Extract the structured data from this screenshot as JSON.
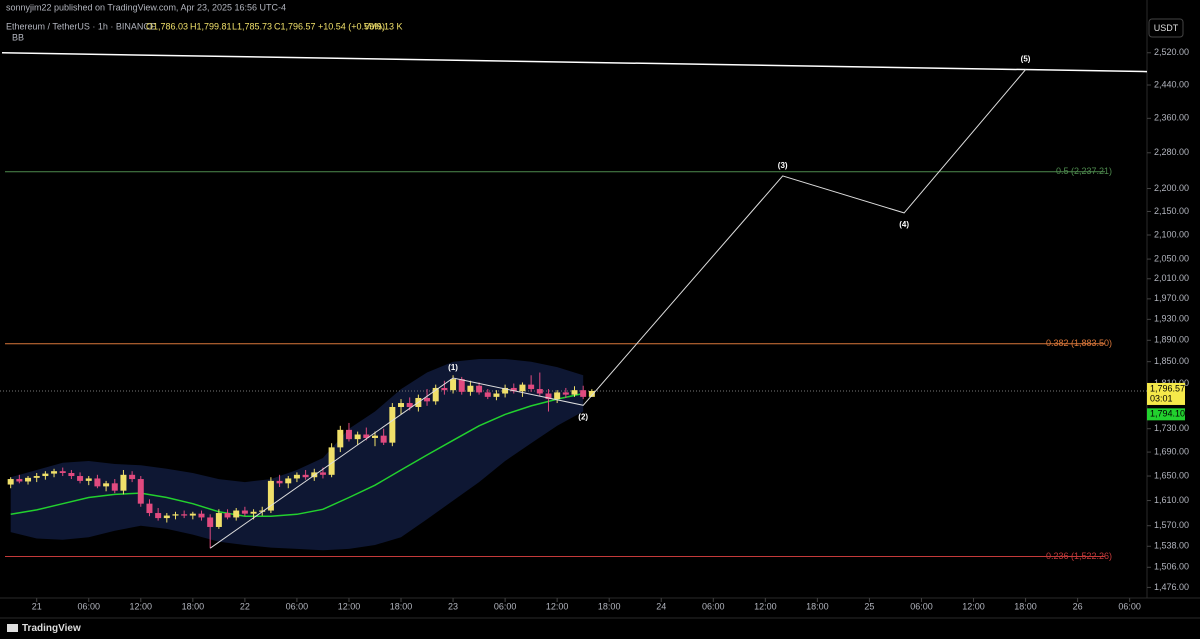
{
  "header": {
    "publisher": "sonnyjim22 published on TradingView.com, Apr 23, 2025 16:56 UTC-4",
    "symbol": "Ethereum / TetherUS · 1h · BINANCE",
    "open": "O1,786.03",
    "high": "H1,799.81",
    "low": "L1,785.73",
    "close": "C1,796.57",
    "change": "+10.54 (+0.59%)",
    "volume": "Vol9.13 K",
    "indicator": "BB",
    "currency": "USDT"
  },
  "footer": {
    "brand": "TradingView"
  },
  "chart_data": {
    "type": "candlestick",
    "log_scale": true,
    "up_color": "#f0e06a",
    "down_color": "#e04a7f",
    "ylim": [
      1443,
      2604
    ],
    "xlim": [
      "2025-04-20T20:00",
      "2025-04-26T08:00"
    ],
    "yticks": [
      {
        "value": 2520,
        "label": "2,520.00"
      },
      {
        "value": 2440,
        "label": "2,440.00"
      },
      {
        "value": 2360,
        "label": "2,360.00"
      },
      {
        "value": 2280,
        "label": "2,280.00"
      },
      {
        "value": 2200,
        "label": "2,200.00"
      },
      {
        "value": 2150,
        "label": "2,150.00"
      },
      {
        "value": 2100,
        "label": "2,100.00"
      },
      {
        "value": 2050,
        "label": "2,050.00"
      },
      {
        "value": 2010,
        "label": "2,010.00"
      },
      {
        "value": 1970,
        "label": "1,970.00"
      },
      {
        "value": 1930,
        "label": "1,930.00"
      },
      {
        "value": 1890,
        "label": "1,890.00"
      },
      {
        "value": 1850,
        "label": "1,850.00"
      },
      {
        "value": 1810,
        "label": "1,810.00"
      },
      {
        "value": 1730,
        "label": "1,730.00"
      },
      {
        "value": 1690,
        "label": "1,690.00"
      },
      {
        "value": 1650,
        "label": "1,650.00"
      },
      {
        "value": 1610,
        "label": "1,610.00"
      },
      {
        "value": 1570,
        "label": "1,570.00"
      },
      {
        "value": 1538,
        "label": "1,538.00"
      },
      {
        "value": 1506,
        "label": "1,506.00"
      },
      {
        "value": 1476,
        "label": "1,476.00"
      }
    ],
    "xticks": [
      {
        "value": "2025-04-21T00:00",
        "label": "21"
      },
      {
        "value": "2025-04-21T06:00",
        "label": "06:00"
      },
      {
        "value": "2025-04-21T12:00",
        "label": "12:00"
      },
      {
        "value": "2025-04-21T18:00",
        "label": "18:00"
      },
      {
        "value": "2025-04-22T00:00",
        "label": "22"
      },
      {
        "value": "2025-04-22T06:00",
        "label": "06:00"
      },
      {
        "value": "2025-04-22T12:00",
        "label": "12:00"
      },
      {
        "value": "2025-04-22T18:00",
        "label": "18:00"
      },
      {
        "value": "2025-04-23T00:00",
        "label": "23"
      },
      {
        "value": "2025-04-23T06:00",
        "label": "06:00"
      },
      {
        "value": "2025-04-23T12:00",
        "label": "12:00"
      },
      {
        "value": "2025-04-23T18:00",
        "label": "18:00"
      },
      {
        "value": "2025-04-24T00:00",
        "label": "24"
      },
      {
        "value": "2025-04-24T06:00",
        "label": "06:00"
      },
      {
        "value": "2025-04-24T12:00",
        "label": "12:00"
      },
      {
        "value": "2025-04-24T18:00",
        "label": "18:00"
      },
      {
        "value": "2025-04-25T00:00",
        "label": "25"
      },
      {
        "value": "2025-04-25T06:00",
        "label": "06:00"
      },
      {
        "value": "2025-04-25T12:00",
        "label": "12:00"
      },
      {
        "value": "2025-04-25T18:00",
        "label": "18:00"
      },
      {
        "value": "2025-04-26T00:00",
        "label": "26"
      },
      {
        "value": "2025-04-26T06:00",
        "label": "06:00"
      }
    ],
    "x": [
      "2025-04-20T21:00",
      "2025-04-20T22:00",
      "2025-04-20T23:00",
      "2025-04-21T00:00",
      "2025-04-21T01:00",
      "2025-04-21T02:00",
      "2025-04-21T03:00",
      "2025-04-21T04:00",
      "2025-04-21T05:00",
      "2025-04-21T06:00",
      "2025-04-21T07:00",
      "2025-04-21T08:00",
      "2025-04-21T09:00",
      "2025-04-21T10:00",
      "2025-04-21T11:00",
      "2025-04-21T12:00",
      "2025-04-21T13:00",
      "2025-04-21T14:00",
      "2025-04-21T15:00",
      "2025-04-21T16:00",
      "2025-04-21T17:00",
      "2025-04-21T18:00",
      "2025-04-21T19:00",
      "2025-04-21T20:00",
      "2025-04-21T21:00",
      "2025-04-21T22:00",
      "2025-04-21T23:00",
      "2025-04-22T00:00",
      "2025-04-22T01:00",
      "2025-04-22T02:00",
      "2025-04-22T03:00",
      "2025-04-22T04:00",
      "2025-04-22T05:00",
      "2025-04-22T06:00",
      "2025-04-22T07:00",
      "2025-04-22T08:00",
      "2025-04-22T09:00",
      "2025-04-22T10:00",
      "2025-04-22T11:00",
      "2025-04-22T12:00",
      "2025-04-22T13:00",
      "2025-04-22T14:00",
      "2025-04-22T15:00",
      "2025-04-22T16:00",
      "2025-04-22T17:00",
      "2025-04-22T18:00",
      "2025-04-22T19:00",
      "2025-04-22T20:00",
      "2025-04-22T21:00",
      "2025-04-22T22:00",
      "2025-04-22T23:00",
      "2025-04-23T00:00",
      "2025-04-23T01:00",
      "2025-04-23T02:00",
      "2025-04-23T03:00",
      "2025-04-23T04:00",
      "2025-04-23T05:00",
      "2025-04-23T06:00",
      "2025-04-23T07:00",
      "2025-04-23T08:00",
      "2025-04-23T09:00",
      "2025-04-23T10:00",
      "2025-04-23T11:00",
      "2025-04-23T12:00",
      "2025-04-23T13:00",
      "2025-04-23T14:00",
      "2025-04-23T15:00",
      "2025-04-23T16:00"
    ],
    "open": [
      1636,
      1645,
      1641,
      1647,
      1650,
      1654,
      1658,
      1655,
      1650,
      1642,
      1646,
      1633,
      1638,
      1626,
      1652,
      1645,
      1605,
      1590,
      1582,
      1586,
      1588,
      1586,
      1589,
      1583,
      1568,
      1590,
      1583,
      1594,
      1589,
      1592,
      1594,
      1642,
      1638,
      1646,
      1652,
      1648,
      1656,
      1652,
      1698,
      1728,
      1712,
      1720,
      1714,
      1718,
      1706,
      1768,
      1775,
      1768,
      1784,
      1778,
      1802,
      1798,
      1818,
      1795,
      1806,
      1794,
      1786,
      1792,
      1802,
      1796,
      1808,
      1800,
      1792,
      1782,
      1794,
      1790,
      1798,
      1786.03
    ],
    "high": [
      1648,
      1652,
      1650,
      1655,
      1658,
      1662,
      1664,
      1660,
      1656,
      1650,
      1652,
      1642,
      1645,
      1660,
      1658,
      1650,
      1612,
      1598,
      1590,
      1592,
      1594,
      1592,
      1594,
      1588,
      1596,
      1596,
      1598,
      1600,
      1596,
      1600,
      1648,
      1652,
      1650,
      1656,
      1660,
      1662,
      1664,
      1705,
      1735,
      1740,
      1725,
      1732,
      1725,
      1730,
      1775,
      1782,
      1785,
      1790,
      1800,
      1808,
      1815,
      1825,
      1822,
      1815,
      1812,
      1800,
      1798,
      1808,
      1810,
      1812,
      1825,
      1830,
      1800,
      1798,
      1802,
      1805,
      1806,
      1799.81
    ],
    "low": [
      1630,
      1638,
      1636,
      1640,
      1644,
      1648,
      1650,
      1645,
      1638,
      1635,
      1630,
      1625,
      1622,
      1620,
      1640,
      1600,
      1585,
      1578,
      1575,
      1580,
      1582,
      1580,
      1578,
      1535,
      1565,
      1580,
      1578,
      1585,
      1580,
      1586,
      1590,
      1632,
      1630,
      1640,
      1644,
      1642,
      1646,
      1648,
      1690,
      1708,
      1702,
      1710,
      1700,
      1702,
      1700,
      1755,
      1762,
      1760,
      1770,
      1772,
      1790,
      1792,
      1790,
      1788,
      1790,
      1782,
      1780,
      1785,
      1792,
      1786,
      1795,
      1788,
      1760,
      1775,
      1784,
      1786,
      1782,
      1785.73
    ],
    "close": [
      1645,
      1641,
      1647,
      1650,
      1654,
      1658,
      1655,
      1650,
      1642,
      1646,
      1633,
      1638,
      1626,
      1652,
      1645,
      1605,
      1590,
      1582,
      1586,
      1588,
      1586,
      1589,
      1583,
      1568,
      1590,
      1583,
      1594,
      1589,
      1592,
      1594,
      1642,
      1638,
      1646,
      1652,
      1648,
      1656,
      1652,
      1698,
      1728,
      1712,
      1720,
      1714,
      1718,
      1706,
      1768,
      1775,
      1768,
      1784,
      1778,
      1802,
      1798,
      1818,
      1795,
      1806,
      1794,
      1786,
      1792,
      1802,
      1796,
      1808,
      1800,
      1792,
      1782,
      1794,
      1790,
      1798,
      1786,
      1796.57
    ],
    "bollinger": {
      "fill": "#0e1733",
      "basis_color": "#22d02e",
      "x": [
        "2025-04-20T21:00",
        "2025-04-21T00:00",
        "2025-04-21T03:00",
        "2025-04-21T06:00",
        "2025-04-21T09:00",
        "2025-04-21T12:00",
        "2025-04-21T15:00",
        "2025-04-21T18:00",
        "2025-04-21T21:00",
        "2025-04-22T00:00",
        "2025-04-22T03:00",
        "2025-04-22T06:00",
        "2025-04-22T09:00",
        "2025-04-22T12:00",
        "2025-04-22T15:00",
        "2025-04-22T18:00",
        "2025-04-22T21:00",
        "2025-04-23T00:00",
        "2025-04-23T03:00",
        "2025-04-23T06:00",
        "2025-04-23T09:00",
        "2025-04-23T12:00",
        "2025-04-23T15:00"
      ],
      "upper": [
        1648,
        1660,
        1672,
        1675,
        1670,
        1668,
        1662,
        1655,
        1645,
        1640,
        1645,
        1660,
        1680,
        1730,
        1760,
        1800,
        1830,
        1850,
        1855,
        1855,
        1850,
        1840,
        1825
      ],
      "basis": [
        1588,
        1595,
        1605,
        1615,
        1620,
        1622,
        1615,
        1605,
        1592,
        1585,
        1585,
        1588,
        1596,
        1615,
        1635,
        1660,
        1685,
        1710,
        1735,
        1755,
        1770,
        1782,
        1792
      ],
      "lower": [
        1560,
        1550,
        1548,
        1552,
        1562,
        1570,
        1565,
        1556,
        1545,
        1540,
        1536,
        1534,
        1532,
        1534,
        1540,
        1552,
        1580,
        1610,
        1640,
        1675,
        1705,
        1735,
        1760
      ]
    },
    "trendline": {
      "color": "#ffffff",
      "x": [
        "2025-04-20T20:00",
        "2025-04-26T08:00"
      ],
      "y": [
        2520,
        2473
      ]
    },
    "wave": {
      "color": "#dddddd",
      "x": [
        "2025-04-21T20:00",
        "2025-04-23T00:00",
        "2025-04-23T15:00",
        "2025-04-24T14:00",
        "2025-04-25T04:00",
        "2025-04-25T18:00"
      ],
      "y": [
        1535,
        1820,
        1771,
        2228,
        2147,
        2478
      ],
      "labels": [
        null,
        "(1)",
        "(2)",
        "(3)",
        "(4)",
        "(5)"
      ]
    },
    "fib_levels": [
      {
        "value": 2237.21,
        "label": "0.5 (2,237.21)",
        "color": "#4e8a4e"
      },
      {
        "value": 1883.5,
        "label": "0.382 (1,883.50)",
        "color": "#d9773a"
      },
      {
        "value": 1522.26,
        "label": "0.236 (1,522.26)",
        "color": "#c43a3a"
      }
    ],
    "last_price": {
      "value": 1796.57,
      "label": "1,796.57",
      "countdown": "03:01",
      "color": "#f5e94a"
    },
    "basis_price": {
      "value": 1794.1,
      "label": "1,794.10",
      "color": "#22d02e"
    }
  }
}
